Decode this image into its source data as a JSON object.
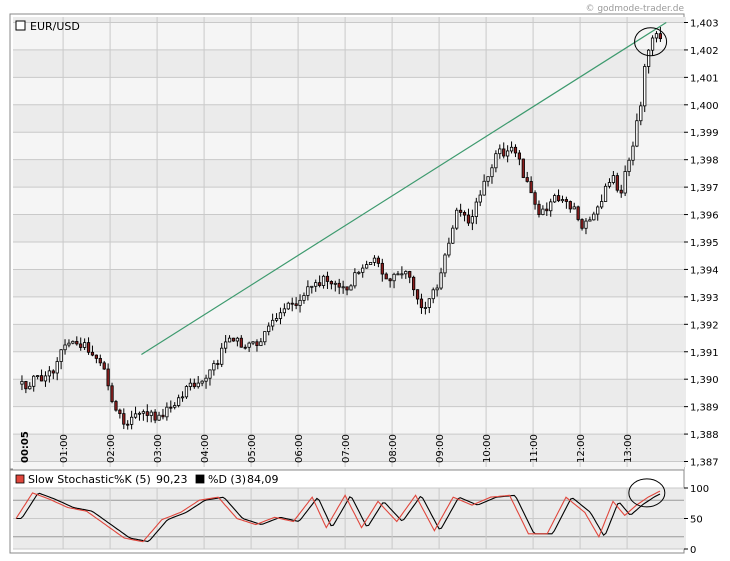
{
  "watermark": "© godmode-trader.de",
  "colors": {
    "panel_bg": "#ebebeb",
    "stripe_bg": "#f5f5f5",
    "up_candle": "#ffffff",
    "down_candle": "#8b1e1e",
    "wick": "#000000",
    "trendline": "#3d9a6e",
    "stoch_k": "#e0463c",
    "stoch_d": "#000000"
  },
  "chart_data": [
    {
      "type": "candlestick",
      "title": "EUR/USD",
      "ylim": [
        1.3868,
        1.4032
      ],
      "y_ticks": [
        "1,403",
        "1,402",
        "1,401",
        "1,400",
        "1,399",
        "1,398",
        "1,397",
        "1,396",
        "1,395",
        "1,394",
        "1,393",
        "1,392",
        "1,391",
        "1,390",
        "1,389",
        "1,388",
        "1,387"
      ],
      "x_ticks": [
        "00:05",
        "01:00",
        "02:00",
        "03:00",
        "04:00",
        "05:00",
        "06:00",
        "07:00",
        "08:00",
        "09:00",
        "10:00",
        "11:00",
        "12:00",
        "13:00"
      ],
      "grid": true,
      "interval_minutes": 5,
      "close_anchors_hours": [
        [
          0.0,
          1.3898
        ],
        [
          0.4,
          1.3899
        ],
        [
          0.8,
          1.3902
        ],
        [
          1.1,
          1.3913
        ],
        [
          1.5,
          1.3912
        ],
        [
          1.9,
          1.3905
        ],
        [
          2.1,
          1.389
        ],
        [
          2.3,
          1.3885
        ],
        [
          2.6,
          1.3887
        ],
        [
          3.0,
          1.3886
        ],
        [
          3.4,
          1.3892
        ],
        [
          3.8,
          1.3898
        ],
        [
          4.2,
          1.3903
        ],
        [
          4.5,
          1.3913
        ],
        [
          4.8,
          1.3914
        ],
        [
          5.2,
          1.3912
        ],
        [
          5.5,
          1.392
        ],
        [
          5.9,
          1.3928
        ],
        [
          6.3,
          1.3932
        ],
        [
          6.6,
          1.3936
        ],
        [
          7.0,
          1.3932
        ],
        [
          7.3,
          1.3939
        ],
        [
          7.6,
          1.3944
        ],
        [
          8.0,
          1.3936
        ],
        [
          8.3,
          1.3941
        ],
        [
          8.6,
          1.3928
        ],
        [
          8.8,
          1.3926
        ],
        [
          9.1,
          1.394
        ],
        [
          9.4,
          1.396
        ],
        [
          9.7,
          1.3957
        ],
        [
          10.0,
          1.397
        ],
        [
          10.3,
          1.3982
        ],
        [
          10.6,
          1.3985
        ],
        [
          10.9,
          1.3972
        ],
        [
          11.2,
          1.396
        ],
        [
          11.5,
          1.3968
        ],
        [
          11.8,
          1.3965
        ],
        [
          12.1,
          1.3955
        ],
        [
          12.4,
          1.3962
        ],
        [
          12.7,
          1.3975
        ],
        [
          12.9,
          1.3968
        ],
        [
          13.1,
          1.3983
        ],
        [
          13.3,
          1.3995
        ],
        [
          13.45,
          1.4018
        ],
        [
          13.6,
          1.4025
        ]
      ],
      "trendline": {
        "start": [
          "02:40",
          1.3909
        ],
        "end": [
          "13:50",
          1.403
        ]
      },
      "highlight_circle_at": [
        "13:30",
        1.4023
      ]
    },
    {
      "type": "line",
      "title": "Slow Stochastic",
      "series": [
        {
          "name": "%K (5)",
          "last_value": "90,23"
        },
        {
          "name": "%D (3)",
          "last_value": "84,09"
        }
      ],
      "ylim": [
        0,
        100
      ],
      "y_ticks": [
        "100",
        "50",
        "0"
      ],
      "k_anchors": [
        [
          0.0,
          50
        ],
        [
          0.35,
          92
        ],
        [
          0.7,
          82
        ],
        [
          1.1,
          68
        ],
        [
          1.5,
          62
        ],
        [
          1.9,
          40
        ],
        [
          2.3,
          18
        ],
        [
          2.7,
          12
        ],
        [
          3.1,
          48
        ],
        [
          3.5,
          60
        ],
        [
          3.9,
          80
        ],
        [
          4.3,
          85
        ],
        [
          4.7,
          50
        ],
        [
          5.1,
          40
        ],
        [
          5.5,
          52
        ],
        [
          5.9,
          45
        ],
        [
          6.3,
          85
        ],
        [
          6.6,
          35
        ],
        [
          7.0,
          88
        ],
        [
          7.35,
          35
        ],
        [
          7.7,
          78
        ],
        [
          8.1,
          45
        ],
        [
          8.5,
          88
        ],
        [
          8.9,
          30
        ],
        [
          9.3,
          85
        ],
        [
          9.7,
          72
        ],
        [
          10.1,
          85
        ],
        [
          10.5,
          88
        ],
        [
          10.9,
          25
        ],
        [
          11.3,
          25
        ],
        [
          11.7,
          85
        ],
        [
          12.1,
          60
        ],
        [
          12.4,
          20
        ],
        [
          12.7,
          78
        ],
        [
          12.95,
          55
        ],
        [
          13.2,
          72
        ],
        [
          13.45,
          85
        ],
        [
          13.7,
          95
        ]
      ]
    }
  ]
}
